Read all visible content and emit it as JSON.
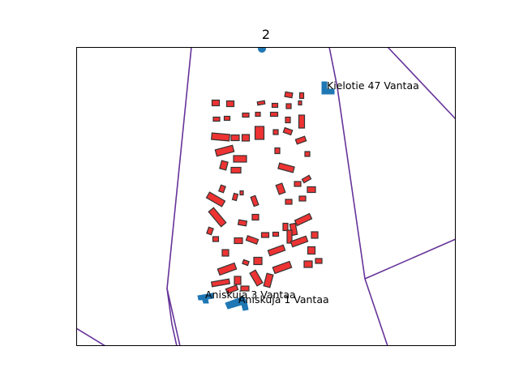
{
  "title": "2",
  "colors": {
    "boundary": "#663399",
    "building_fill": "#ee3333",
    "building_edge": "#333333",
    "marker": "#1f77b4",
    "frame": "#000000"
  },
  "labels": [
    {
      "id": "label-kielotie-47",
      "text": "Kielotie 47 Vantaa"
    },
    {
      "id": "label-aniskuja-3",
      "text": "Aniskuja 3 Vantaa"
    },
    {
      "id": "label-aniskuja-1",
      "text": "Aniskuja 1 Vantaa"
    }
  ]
}
